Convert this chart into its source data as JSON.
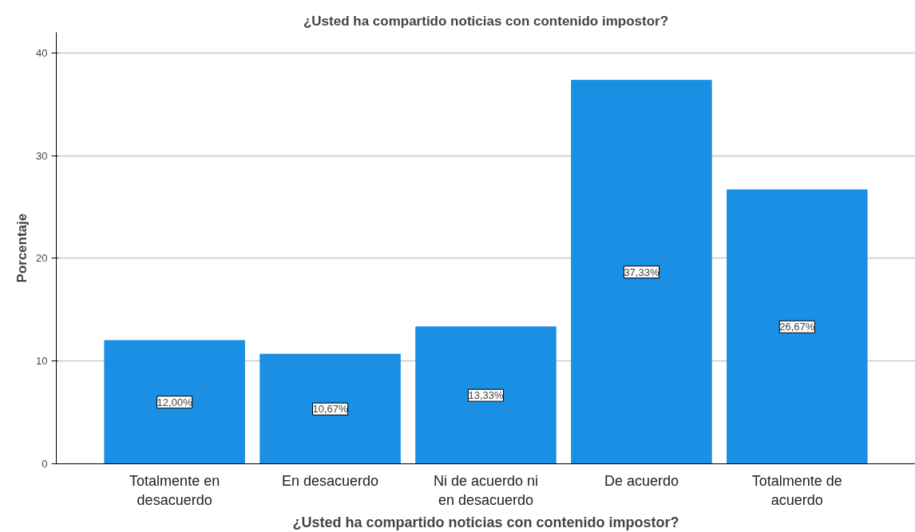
{
  "chart_data": {
    "type": "bar",
    "title": "¿Usted ha compartido noticias con contenido impostor?",
    "xlabel": "¿Usted ha compartido noticias con contenido impostor?",
    "ylabel": "Porcentaje",
    "categories": [
      "Totalmente en\ndesacuerdo",
      "En desacuerdo",
      "Ni de acuerdo ni\nen desacuerdo",
      "De acuerdo",
      "Totalmente de\nacuerdo"
    ],
    "values": [
      12.0,
      10.67,
      13.33,
      37.33,
      26.67
    ],
    "value_labels": [
      "12,00%",
      "10,67%",
      "13,33%",
      "37,33%",
      "26,67%"
    ],
    "color": "#1a8fe3",
    "ylim": [
      0,
      42
    ],
    "yticks": [
      0,
      10,
      20,
      30,
      40
    ],
    "grid": "y"
  }
}
